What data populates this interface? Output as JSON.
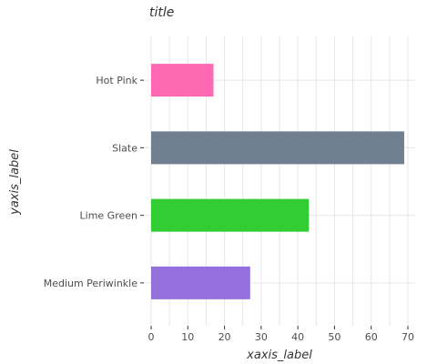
{
  "chart_data": {
    "type": "bar",
    "orientation": "horizontal",
    "title": "title",
    "xlabel": "xaxis_label",
    "ylabel": "yaxis_label",
    "categories": [
      "Medium Periwinkle",
      "Lime Green",
      "Slate",
      "Hot Pink"
    ],
    "values": [
      27,
      43,
      69,
      17
    ],
    "colors": [
      "#9370DB",
      "#32CD32",
      "#708090",
      "#FF69B4"
    ],
    "xlim": [
      0,
      70
    ],
    "xticks": [
      0,
      10,
      20,
      30,
      40,
      50,
      60,
      70
    ],
    "grid": true
  }
}
